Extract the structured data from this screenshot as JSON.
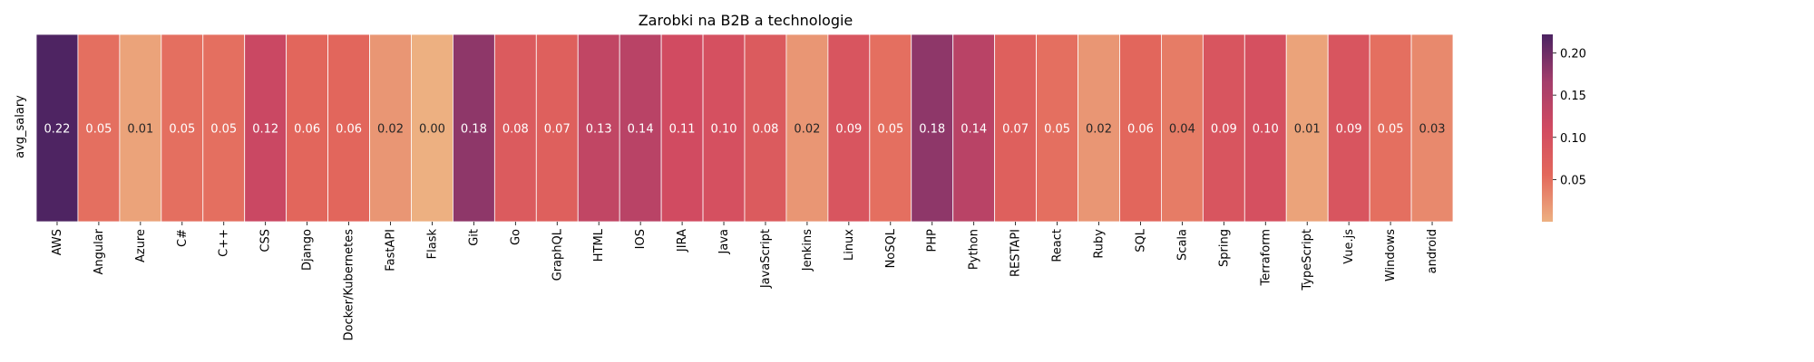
{
  "chart_data": {
    "type": "heatmap",
    "title": "Zarobki na B2B a technologie",
    "row_label": "avg_salary",
    "columns": [
      "AWS",
      "Angular",
      "Azure",
      "C#",
      "C++",
      "CSS",
      "Django",
      "Docker/Kubernetes",
      "FastAPI",
      "Flask",
      "Git",
      "Go",
      "GraphQL",
      "HTML",
      "IOS",
      "JIRA",
      "Java",
      "JavaScript",
      "Jenkins",
      "Linux",
      "NoSQL",
      "PHP",
      "Python",
      "RESTAPI",
      "React",
      "Ruby",
      "SQL",
      "Scala",
      "Spring",
      "Terraform",
      "TypeScript",
      "Vue.js",
      "Windows",
      "android"
    ],
    "values": [
      0.22,
      0.05,
      0.01,
      0.05,
      0.05,
      0.12,
      0.06,
      0.06,
      0.02,
      0.0,
      0.18,
      0.08,
      0.07,
      0.13,
      0.14,
      0.11,
      0.1,
      0.08,
      0.02,
      0.09,
      0.05,
      0.18,
      0.14,
      0.07,
      0.05,
      0.02,
      0.06,
      0.04,
      0.09,
      0.1,
      0.01,
      0.09,
      0.05,
      0.03
    ],
    "labels": [
      "0.22",
      "0.05",
      "0.01",
      "0.05",
      "0.05",
      "0.12",
      "0.06",
      "0.06",
      "0.02",
      "0.00",
      "0.18",
      "0.08",
      "0.07",
      "0.13",
      "0.14",
      "0.11",
      "0.10",
      "0.08",
      "0.02",
      "0.09",
      "0.05",
      "0.18",
      "0.14",
      "0.07",
      "0.05",
      "0.02",
      "0.06",
      "0.04",
      "0.09",
      "0.10",
      "0.01",
      "0.09",
      "0.05",
      "0.03"
    ],
    "colormap": "flare",
    "vmin": 0.0,
    "vmax": 0.222,
    "colorbar_ticks": [
      0.05,
      0.1,
      0.15,
      0.2
    ],
    "colorbar_labels": [
      "0.05",
      "0.10",
      "0.15",
      "0.20"
    ],
    "colors": {
      "low": "#edb081",
      "mid_low": "#e3685c",
      "mid": "#d14a61",
      "mid_high": "#a33d6b",
      "high": "#4b2362",
      "cell_border": "#ffffff"
    }
  }
}
